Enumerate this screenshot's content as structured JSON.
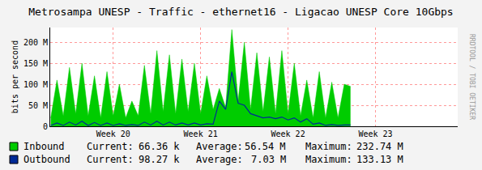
{
  "chart_data": {
    "type": "area",
    "title": "Metrosampa UNESP - Traffic - ethernet16 - Ligacao UNESP Core 10Gbps",
    "y_label": "bits per second",
    "watermark": "RRDTOOL / TOBI OETIKER",
    "grid": true,
    "xlim": [
      19.78,
      24.44
    ],
    "xticks": [
      {
        "value": 20.5,
        "label": "Week 20"
      },
      {
        "value": 21.5,
        "label": "Week 21"
      },
      {
        "value": 22.5,
        "label": "Week 22"
      },
      {
        "value": 23.5,
        "label": "Week 23"
      }
    ],
    "ylim": [
      0,
      235000000
    ],
    "yticks": [
      0,
      {
        "value": 50000000,
        "label": "50 M"
      },
      {
        "value": 100000000,
        "label": "100 M"
      },
      {
        "value": 150000000,
        "label": "150 M"
      },
      {
        "value": 200000000,
        "label": "200 M"
      }
    ],
    "x": [
      19.786,
      19.857,
      19.929,
      20.0,
      20.071,
      20.143,
      20.214,
      20.286,
      20.357,
      20.429,
      20.5,
      20.571,
      20.643,
      20.714,
      20.786,
      20.857,
      20.929,
      21.0,
      21.071,
      21.143,
      21.214,
      21.286,
      21.357,
      21.429,
      21.5,
      21.571,
      21.643,
      21.714,
      21.786,
      21.857,
      21.929,
      22.0,
      22.071,
      22.143,
      22.214,
      22.286,
      22.357,
      22.429,
      22.5,
      22.571,
      22.643,
      22.714,
      22.786,
      22.857,
      22.929,
      23.0,
      23.071,
      23.143,
      23.214
    ],
    "series": [
      {
        "name": "Inbound",
        "type": "area",
        "color": "#00cc00",
        "values": [
          20000000,
          110000000,
          25000000,
          140000000,
          30000000,
          150000000,
          25000000,
          120000000,
          20000000,
          130000000,
          25000000,
          100000000,
          20000000,
          60000000,
          25000000,
          145000000,
          30000000,
          180000000,
          35000000,
          170000000,
          30000000,
          160000000,
          35000000,
          150000000,
          30000000,
          120000000,
          40000000,
          90000000,
          45000000,
          230000000,
          60000000,
          200000000,
          40000000,
          175000000,
          35000000,
          165000000,
          30000000,
          180000000,
          30000000,
          150000000,
          25000000,
          110000000,
          20000000,
          130000000,
          20000000,
          105000000,
          20000000,
          100000000,
          95000000
        ],
        "stats": [
          {
            "label": "Current:",
            "value": "66.36 k"
          },
          {
            "label": "Average:",
            "value": "56.54 M"
          },
          {
            "label": "Maximum:",
            "value": "232.74 M"
          }
        ]
      },
      {
        "name": "Outbound",
        "type": "line",
        "color": "#002a97",
        "values": [
          2000000,
          8000000,
          2000000,
          10000000,
          3000000,
          12000000,
          2000000,
          9000000,
          2000000,
          8000000,
          2000000,
          6000000,
          2000000,
          4000000,
          2000000,
          10000000,
          3000000,
          12000000,
          3000000,
          10000000,
          3000000,
          8000000,
          3000000,
          8000000,
          3000000,
          6000000,
          5000000,
          60000000,
          40000000,
          130000000,
          55000000,
          50000000,
          30000000,
          25000000,
          20000000,
          22000000,
          18000000,
          22000000,
          15000000,
          20000000,
          10000000,
          18000000,
          5000000,
          8000000,
          2000000,
          4000000,
          2000000,
          3000000,
          3000000
        ],
        "stats": [
          {
            "label": "Current:",
            "value": "98.27 k"
          },
          {
            "label": "Average:",
            "value": "7.03 M"
          },
          {
            "label": "Maximum:",
            "value": "133.13 M"
          }
        ]
      }
    ]
  }
}
